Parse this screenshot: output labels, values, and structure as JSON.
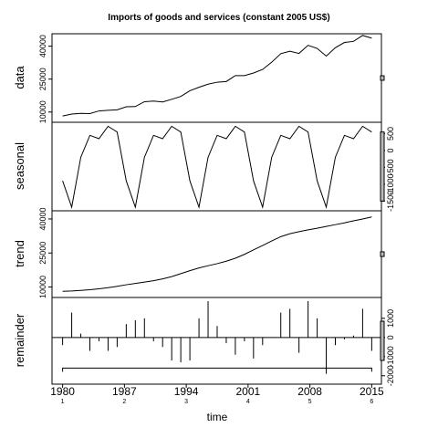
{
  "chart_data": {
    "type": "line",
    "title": "Imports of goods and services (constant 2005 US$)",
    "xlabel": "time",
    "x_ticks": [
      "1980",
      "1987",
      "1994",
      "2001",
      "2008",
      "2015"
    ],
    "x_tick_sub": [
      "1",
      "2",
      "3",
      "4",
      "5",
      "6"
    ],
    "xlim": [
      1978.8,
      2016.1
    ],
    "series": [
      {
        "name": "data",
        "ylabel": "data",
        "ylim": [
          7000,
          44000
        ],
        "y_ticks": [
          10000,
          25000,
          40000
        ],
        "y_tick_labels": [
          "10000",
          "25000",
          "40000"
        ],
        "axis_side": "left",
        "values": [
          8200,
          9100,
          9400,
          9300,
          10500,
          10800,
          11000,
          12400,
          12500,
          14700,
          15000,
          14600,
          15800,
          17100,
          19700,
          21300,
          22700,
          23600,
          23900,
          26600,
          26600,
          27800,
          29400,
          32700,
          36600,
          37700,
          36700,
          40400,
          39000,
          35500,
          39300,
          41700,
          42200,
          44900,
          43700
        ]
      },
      {
        "name": "seasonal",
        "ylabel": "seasonal",
        "ylim": [
          -1680,
          730
        ],
        "y_ticks": [
          -1500,
          -1000,
          -500,
          0,
          500
        ],
        "y_tick_labels": [
          "-1500",
          "-1000",
          "-500",
          "0",
          "500"
        ],
        "axis_side": "right",
        "values": [
          -900,
          -1680,
          -200,
          450,
          350,
          720,
          550,
          -900,
          -1680,
          -200,
          450,
          350,
          720,
          550,
          -900,
          -1680,
          -200,
          450,
          350,
          720,
          550,
          -900,
          -1680,
          -200,
          450,
          350,
          720,
          550,
          -900,
          -1680,
          -200,
          450,
          350,
          720,
          550
        ]
      },
      {
        "name": "trend",
        "ylabel": "trend",
        "ylim": [
          7000,
          42000
        ],
        "y_ticks": [
          10000,
          25000,
          40000
        ],
        "y_tick_labels": [
          "10000",
          "25000",
          "40000"
        ],
        "axis_side": "left",
        "values": [
          8100,
          8250,
          8500,
          8800,
          9200,
          9700,
          10300,
          11000,
          11600,
          12200,
          12800,
          13600,
          14600,
          15900,
          17200,
          18400,
          19400,
          20300,
          21400,
          22700,
          24400,
          26400,
          28300,
          30300,
          32200,
          33500,
          34400,
          35200,
          35900,
          36700,
          37500,
          38300,
          39200,
          40000,
          40900
        ]
      },
      {
        "name": "remainder",
        "ylabel": "remainder",
        "ylim": [
          -2250,
          1900
        ],
        "y_ticks": [
          -2000,
          -1000,
          0,
          1000
        ],
        "y_tick_labels": [
          "-2000",
          "-1000",
          "0",
          "1000"
        ],
        "axis_side": "right",
        "values": [
          -400,
          1300,
          200,
          -700,
          -200,
          -700,
          -500,
          700,
          900,
          1000,
          -200,
          -500,
          -1200,
          -1300,
          -1200,
          1000,
          1900,
          600,
          -300,
          -900,
          -200,
          -1100,
          -400,
          0,
          1300,
          1500,
          -800,
          1900,
          1000,
          -1900,
          -400,
          -100,
          100,
          1500,
          -700
        ]
      }
    ],
    "remainder_bracket": {
      "from": 1980,
      "to": 2015,
      "value": -1600
    },
    "range_bars": true,
    "grid": false,
    "legend": "none"
  }
}
